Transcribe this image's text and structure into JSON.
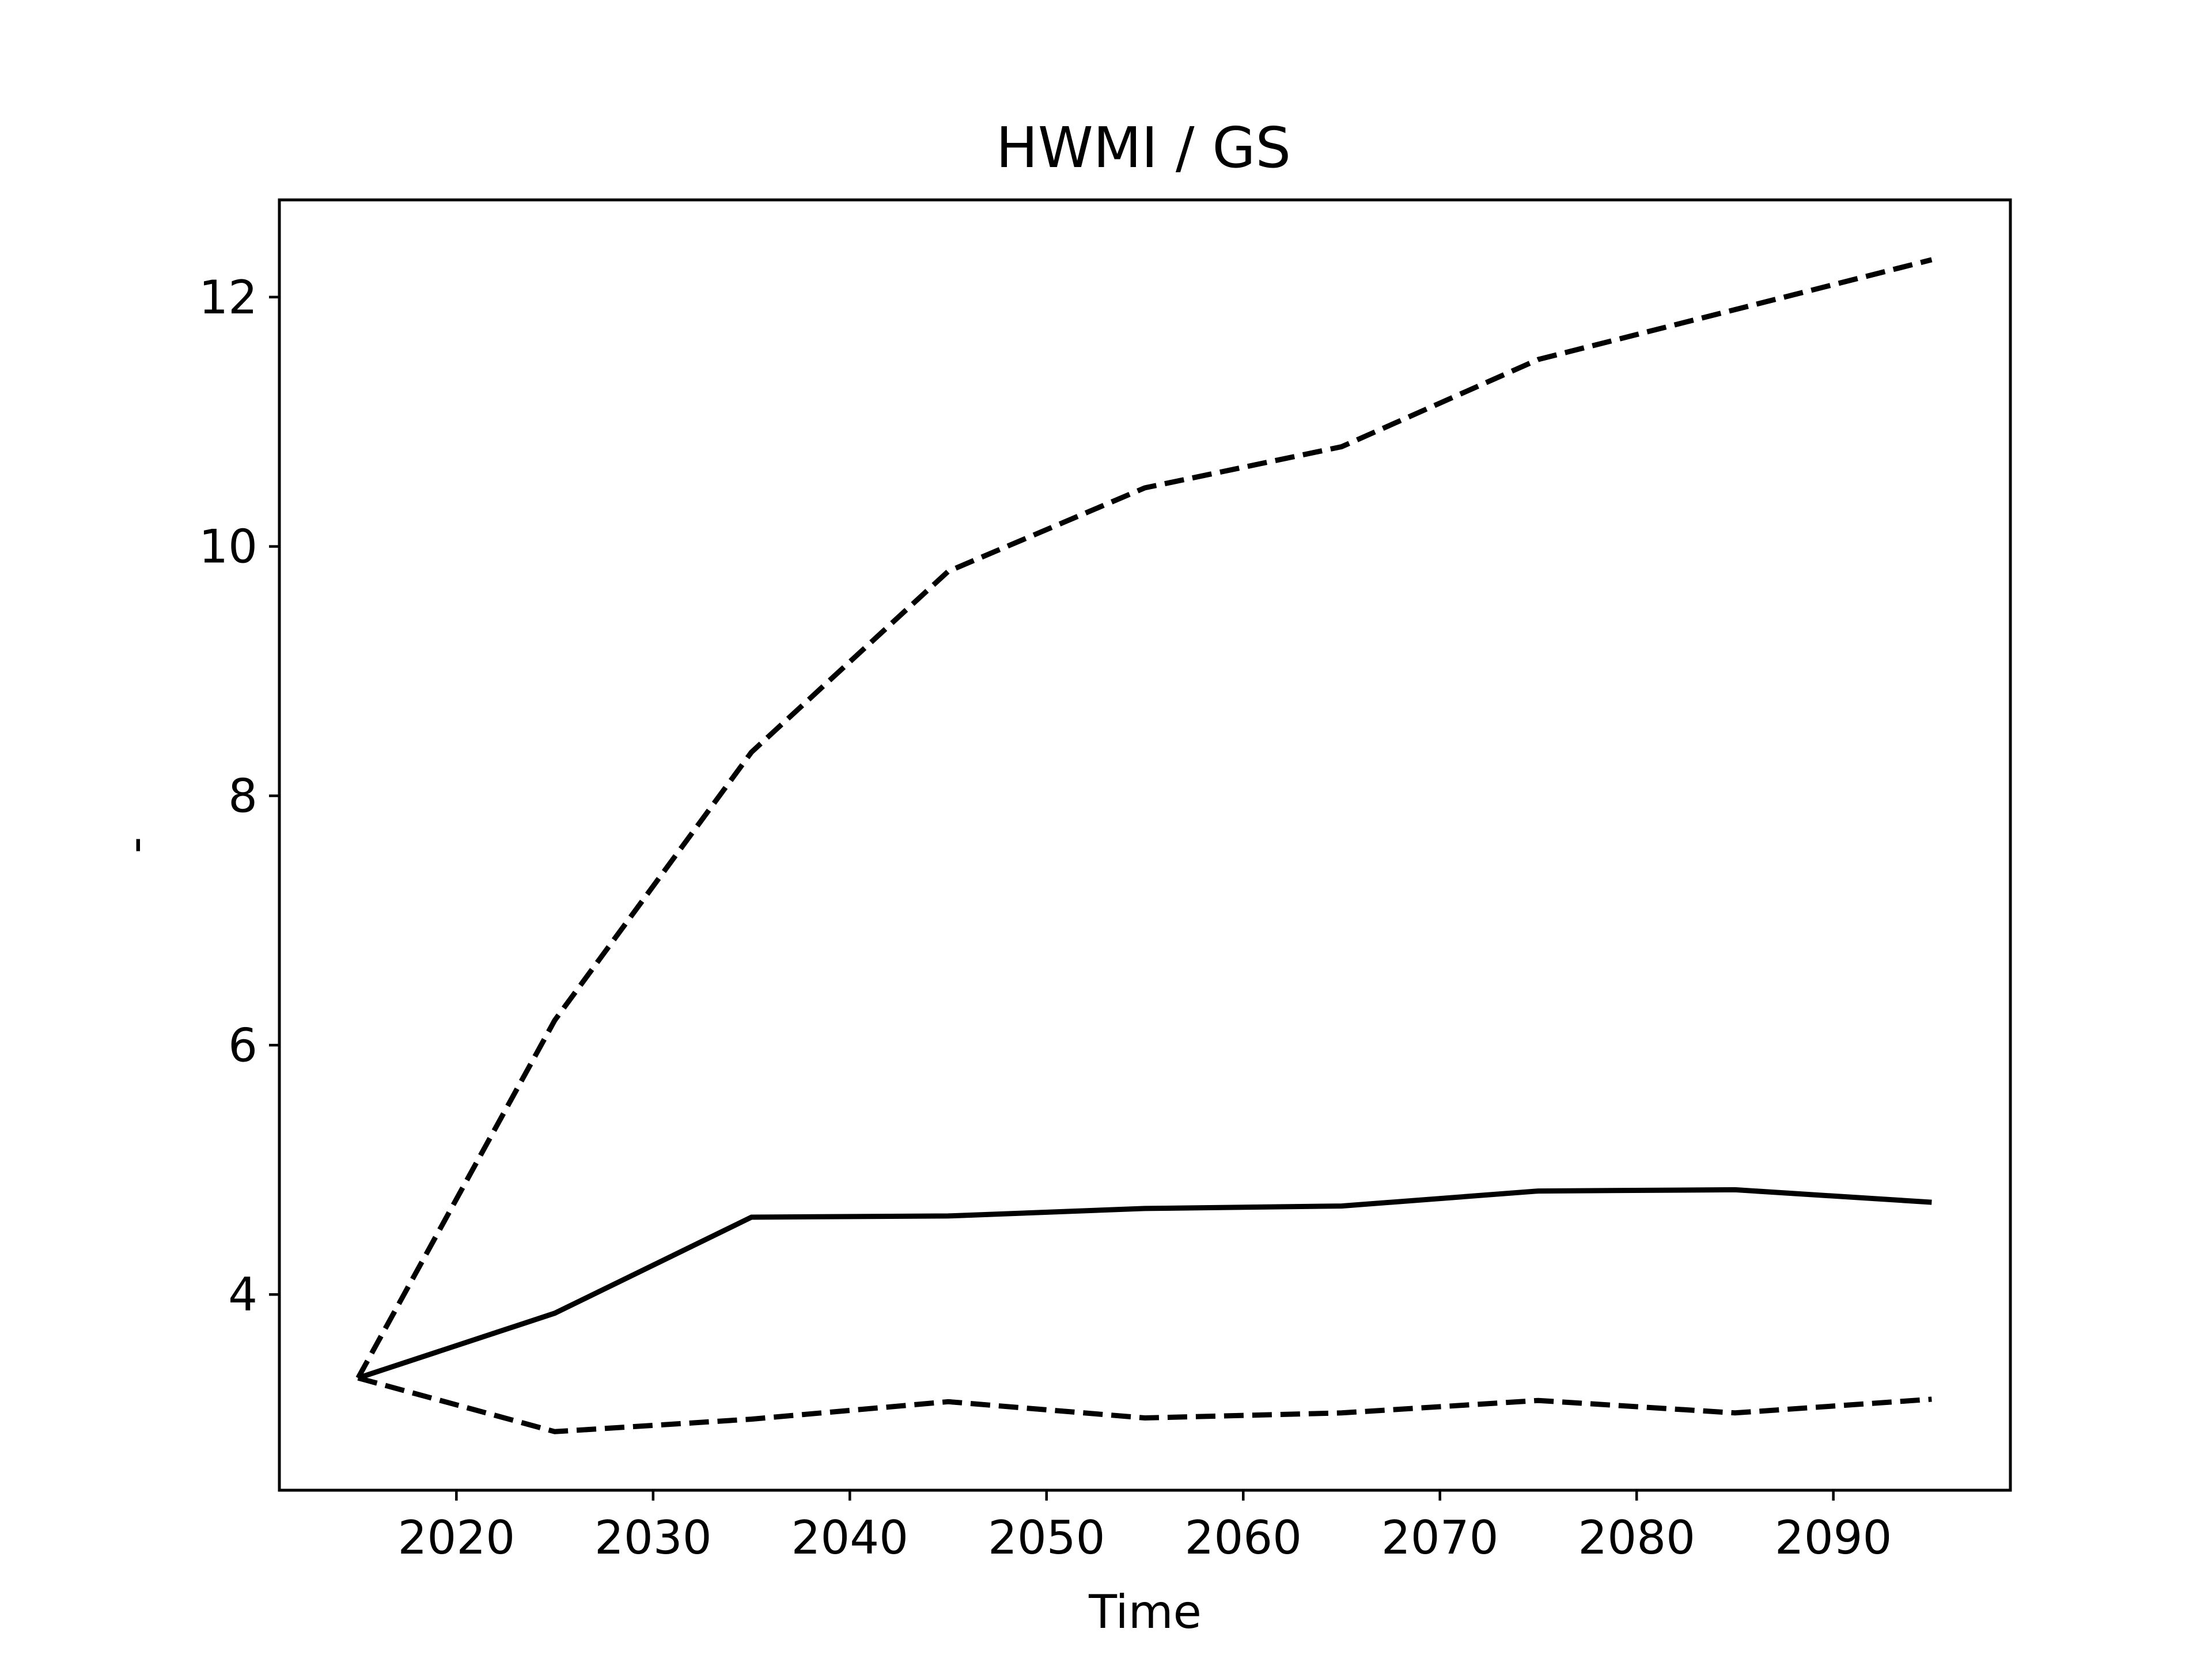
{
  "chart_data": {
    "type": "line",
    "title": "HWMI / GS",
    "xlabel": "Time",
    "ylabel": "-",
    "x": [
      2015,
      2025,
      2035,
      2045,
      2055,
      2065,
      2075,
      2085,
      2095
    ],
    "series": [
      {
        "style": "dashed",
        "values": [
          3.33,
          6.2,
          8.35,
          9.8,
          10.47,
          10.8,
          11.5,
          11.9,
          12.3
        ]
      },
      {
        "style": "solid",
        "values": [
          3.33,
          3.85,
          4.62,
          4.63,
          4.69,
          4.71,
          4.83,
          4.84,
          4.74
        ]
      },
      {
        "style": "dashed",
        "values": [
          3.33,
          2.9,
          3.0,
          3.14,
          3.01,
          3.05,
          3.15,
          3.05,
          3.16
        ]
      }
    ],
    "xlim": [
      2011,
      2099
    ],
    "ylim": [
      2.43,
      12.78
    ],
    "xticks": [
      2020,
      2030,
      2040,
      2050,
      2060,
      2070,
      2080,
      2090
    ],
    "yticks": [
      4,
      6,
      8,
      10,
      12
    ],
    "grid": false,
    "colors": {
      "line": "#000000",
      "axes": "#000000",
      "background": "#ffffff"
    }
  }
}
